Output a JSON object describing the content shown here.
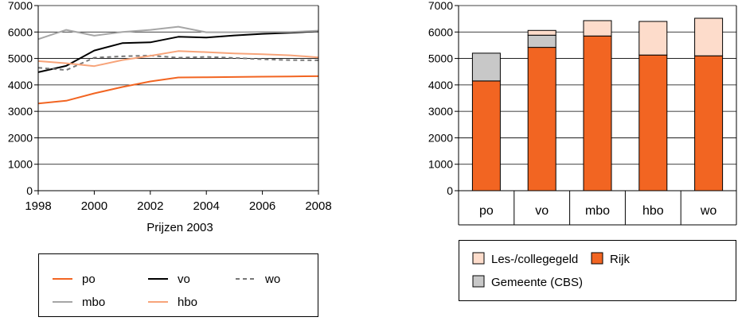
{
  "chart_data": [
    {
      "type": "line",
      "title": "",
      "xlabel": "Prijzen 2003",
      "ylabel": "",
      "xlim": [
        1998,
        2008
      ],
      "ylim": [
        0,
        7000
      ],
      "x_ticks": [
        1998,
        2000,
        2002,
        2004,
        2006,
        2008
      ],
      "y_ticks": [
        0,
        1000,
        2000,
        3000,
        4000,
        5000,
        6000,
        7000
      ],
      "grid": "horizontal",
      "legend_position": "bottom",
      "series": [
        {
          "name": "po",
          "color": "#f26522",
          "dash": "solid",
          "x": [
            1998,
            1999,
            2000,
            2001,
            2002,
            2003,
            2004,
            2005,
            2006,
            2007,
            2008
          ],
          "y": [
            3300,
            3400,
            3680,
            3920,
            4130,
            4280,
            4290,
            4300,
            4310,
            4320,
            4330
          ]
        },
        {
          "name": "vo",
          "color": "#000000",
          "dash": "solid",
          "x": [
            1998,
            1999,
            2000,
            2001,
            2002,
            2003,
            2004,
            2005,
            2006,
            2007,
            2008
          ],
          "y": [
            4480,
            4720,
            5300,
            5580,
            5610,
            5820,
            5790,
            5870,
            5930,
            5970,
            6030
          ]
        },
        {
          "name": "wo",
          "color": "#777777",
          "dash": "dashed",
          "x": [
            1998,
            1999,
            2000,
            2001,
            2002,
            2003,
            2004,
            2005,
            2006,
            2007,
            2008
          ],
          "y": [
            4650,
            4560,
            5030,
            5080,
            5110,
            5030,
            5060,
            5020,
            4970,
            4940,
            4930
          ]
        },
        {
          "name": "mbo",
          "color": "#a6a6a6",
          "dash": "solid",
          "x": [
            1998,
            1999,
            2000,
            2001,
            2002,
            2003,
            2004,
            2005,
            2006,
            2007,
            2008
          ],
          "y": [
            5730,
            6080,
            5860,
            6000,
            6080,
            6200,
            5990,
            5990,
            6000,
            6000,
            6050
          ]
        },
        {
          "name": "hbo",
          "color": "#f7a47a",
          "dash": "solid",
          "x": [
            1998,
            1999,
            2000,
            2001,
            2002,
            2003,
            2004,
            2005,
            2006,
            2007,
            2008
          ],
          "y": [
            4900,
            4820,
            4710,
            4940,
            5100,
            5280,
            5240,
            5190,
            5160,
            5120,
            5040
          ]
        }
      ],
      "legend_order": [
        "po",
        "vo",
        "wo",
        "mbo",
        "hbo"
      ]
    },
    {
      "type": "bar",
      "stacked": true,
      "title": "",
      "xlabel": "",
      "ylabel": "",
      "ylim": [
        0,
        7000
      ],
      "y_ticks": [
        0,
        1000,
        2000,
        3000,
        4000,
        5000,
        6000,
        7000
      ],
      "grid": "horizontal",
      "legend_position": "bottom",
      "categories": [
        "po",
        "vo",
        "mbo",
        "hbo",
        "wo"
      ],
      "series": [
        {
          "name": "Rijk",
          "color": "#f26522",
          "values": [
            4150,
            5420,
            5850,
            5130,
            5100
          ]
        },
        {
          "name": "Gemeente (CBS)",
          "color": "#c8c8c8",
          "values": [
            1050,
            460,
            0,
            0,
            0
          ]
        },
        {
          "name": "Les-/collegegeld",
          "color": "#fddccb",
          "values": [
            0,
            180,
            580,
            1270,
            1420
          ]
        }
      ],
      "legend_order": [
        "Les-/collegegeld",
        "Rijk",
        "Gemeente (CBS)"
      ]
    }
  ]
}
